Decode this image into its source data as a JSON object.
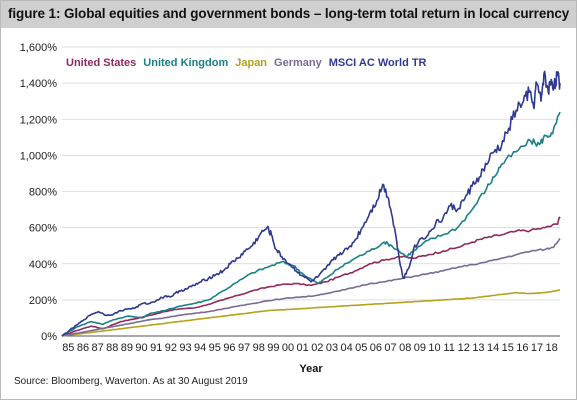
{
  "figure": {
    "title": "figure 1: Global equities and government bonds – long-term total return in local currency",
    "source": "Source: Bloomberg, Waverton. As at 30 August 2019"
  },
  "chart_data": {
    "type": "line",
    "title": "figure 1: Global equities and government bonds – long-term total return in local currency",
    "xlabel": "Year",
    "ylabel": "",
    "ylim": [
      0,
      1600
    ],
    "xlim": [
      1985,
      2019
    ],
    "y_ticks": [
      "0%",
      "200%",
      "400%",
      "600%",
      "800%",
      "1,000%",
      "1,200%",
      "1,400%",
      "1,600%"
    ],
    "y_tick_values": [
      0,
      200,
      400,
      600,
      800,
      1000,
      1200,
      1400,
      1600
    ],
    "x_ticks": [
      "85",
      "86",
      "87",
      "88",
      "89",
      "90",
      "91",
      "92",
      "93",
      "94",
      "95",
      "96",
      "97",
      "98",
      "99",
      "00",
      "01",
      "02",
      "03",
      "04",
      "05",
      "06",
      "07",
      "08",
      "09",
      "10",
      "11",
      "12",
      "13",
      "14",
      "15",
      "16",
      "17",
      "18"
    ],
    "grid": "horizontal",
    "legend": "top-left",
    "series": [
      {
        "name": "United States",
        "color": "#8e2a5e",
        "points": [
          [
            1985.0,
            0
          ],
          [
            1986.0,
            30
          ],
          [
            1987.0,
            55
          ],
          [
            1987.8,
            40
          ],
          [
            1989.0,
            80
          ],
          [
            1990.0,
            95
          ],
          [
            1991.0,
            115
          ],
          [
            1992.0,
            135
          ],
          [
            1993.0,
            150
          ],
          [
            1994.0,
            155
          ],
          [
            1995.0,
            175
          ],
          [
            1996.0,
            200
          ],
          [
            1997.0,
            225
          ],
          [
            1998.0,
            250
          ],
          [
            1999.0,
            270
          ],
          [
            2000.0,
            285
          ],
          [
            2001.0,
            290
          ],
          [
            2002.0,
            280
          ],
          [
            2003.0,
            300
          ],
          [
            2004.0,
            330
          ],
          [
            2005.0,
            360
          ],
          [
            2006.0,
            400
          ],
          [
            2007.0,
            420
          ],
          [
            2008.0,
            440
          ],
          [
            2009.0,
            430
          ],
          [
            2010.0,
            450
          ],
          [
            2011.0,
            470
          ],
          [
            2012.0,
            490
          ],
          [
            2013.0,
            520
          ],
          [
            2014.0,
            545
          ],
          [
            2015.0,
            560
          ],
          [
            2016.0,
            580
          ],
          [
            2017.0,
            585
          ],
          [
            2018.0,
            600
          ],
          [
            2018.8,
            620
          ],
          [
            2019.0,
            660
          ]
        ]
      },
      {
        "name": "United Kingdom",
        "color": "#1b8187",
        "points": [
          [
            1985.0,
            0
          ],
          [
            1986.0,
            50
          ],
          [
            1987.0,
            80
          ],
          [
            1987.8,
            65
          ],
          [
            1988.5,
            90
          ],
          [
            1989.5,
            110
          ],
          [
            1990.5,
            100
          ],
          [
            1991.0,
            125
          ],
          [
            1992.0,
            140
          ],
          [
            1993.0,
            165
          ],
          [
            1994.0,
            180
          ],
          [
            1995.0,
            200
          ],
          [
            1996.0,
            250
          ],
          [
            1997.0,
            300
          ],
          [
            1998.0,
            350
          ],
          [
            1999.0,
            380
          ],
          [
            2000.0,
            410
          ],
          [
            2000.8,
            390
          ],
          [
            2001.5,
            340
          ],
          [
            2002.5,
            290
          ],
          [
            2003.0,
            320
          ],
          [
            2004.0,
            380
          ],
          [
            2005.0,
            430
          ],
          [
            2006.0,
            470
          ],
          [
            2007.0,
            520
          ],
          [
            2007.5,
            500
          ],
          [
            2008.5,
            440
          ],
          [
            2009.0,
            470
          ],
          [
            2010.0,
            530
          ],
          [
            2011.0,
            560
          ],
          [
            2012.0,
            600
          ],
          [
            2013.0,
            700
          ],
          [
            2014.0,
            820
          ],
          [
            2014.5,
            880
          ],
          [
            2015.0,
            950
          ],
          [
            2016.0,
            1020
          ],
          [
            2017.0,
            1080
          ],
          [
            2017.6,
            1060
          ],
          [
            2018.0,
            1110
          ],
          [
            2018.5,
            1120
          ],
          [
            2019.0,
            1240
          ]
        ]
      },
      {
        "name": "Japan",
        "color": "#b5a21a",
        "points": [
          [
            1985.0,
            0
          ],
          [
            1986.0,
            10
          ],
          [
            1987.0,
            20
          ],
          [
            1988.0,
            30
          ],
          [
            1989.0,
            40
          ],
          [
            1990.0,
            50
          ],
          [
            1991.0,
            60
          ],
          [
            1992.0,
            70
          ],
          [
            1993.0,
            80
          ],
          [
            1994.0,
            90
          ],
          [
            1995.0,
            100
          ],
          [
            1996.0,
            110
          ],
          [
            1997.0,
            120
          ],
          [
            1998.0,
            130
          ],
          [
            1999.0,
            140
          ],
          [
            2000.0,
            145
          ],
          [
            2001.0,
            150
          ],
          [
            2002.0,
            155
          ],
          [
            2003.0,
            160
          ],
          [
            2004.0,
            165
          ],
          [
            2005.0,
            170
          ],
          [
            2006.0,
            175
          ],
          [
            2007.0,
            180
          ],
          [
            2008.0,
            185
          ],
          [
            2009.0,
            190
          ],
          [
            2010.0,
            195
          ],
          [
            2011.0,
            200
          ],
          [
            2012.0,
            205
          ],
          [
            2013.0,
            210
          ],
          [
            2014.0,
            220
          ],
          [
            2015.0,
            230
          ],
          [
            2016.0,
            240
          ],
          [
            2017.0,
            235
          ],
          [
            2018.0,
            240
          ],
          [
            2019.0,
            255
          ]
        ]
      },
      {
        "name": "Germany",
        "color": "#7a6a96",
        "points": [
          [
            1985.0,
            0
          ],
          [
            1986.0,
            15
          ],
          [
            1987.0,
            30
          ],
          [
            1988.0,
            45
          ],
          [
            1989.0,
            60
          ],
          [
            1990.0,
            75
          ],
          [
            1991.0,
            90
          ],
          [
            1992.0,
            100
          ],
          [
            1993.0,
            115
          ],
          [
            1994.0,
            125
          ],
          [
            1995.0,
            135
          ],
          [
            1996.0,
            150
          ],
          [
            1997.0,
            165
          ],
          [
            1998.0,
            180
          ],
          [
            1999.0,
            195
          ],
          [
            2000.0,
            205
          ],
          [
            2001.0,
            215
          ],
          [
            2002.0,
            220
          ],
          [
            2003.0,
            235
          ],
          [
            2004.0,
            250
          ],
          [
            2005.0,
            270
          ],
          [
            2006.0,
            290
          ],
          [
            2007.0,
            300
          ],
          [
            2008.0,
            315
          ],
          [
            2009.0,
            330
          ],
          [
            2010.0,
            345
          ],
          [
            2011.0,
            360
          ],
          [
            2012.0,
            380
          ],
          [
            2013.0,
            395
          ],
          [
            2014.0,
            410
          ],
          [
            2015.0,
            430
          ],
          [
            2016.0,
            450
          ],
          [
            2017.0,
            470
          ],
          [
            2018.0,
            480
          ],
          [
            2018.5,
            490
          ],
          [
            2019.0,
            540
          ]
        ]
      },
      {
        "name": "MSCI AC World TR",
        "color": "#2f3a8f",
        "points": [
          [
            1985.0,
            0
          ],
          [
            1985.5,
            30
          ],
          [
            1986.0,
            60
          ],
          [
            1986.5,
            90
          ],
          [
            1987.0,
            120
          ],
          [
            1987.5,
            135
          ],
          [
            1988.0,
            115
          ],
          [
            1988.5,
            120
          ],
          [
            1989.0,
            140
          ],
          [
            1989.5,
            150
          ],
          [
            1990.0,
            155
          ],
          [
            1990.5,
            180
          ],
          [
            1991.0,
            180
          ],
          [
            1991.5,
            200
          ],
          [
            1992.0,
            220
          ],
          [
            1992.5,
            220
          ],
          [
            1993.0,
            250
          ],
          [
            1993.5,
            260
          ],
          [
            1994.0,
            280
          ],
          [
            1994.5,
            300
          ],
          [
            1995.0,
            320
          ],
          [
            1995.5,
            340
          ],
          [
            1996.0,
            360
          ],
          [
            1996.5,
            400
          ],
          [
            1997.0,
            430
          ],
          [
            1997.5,
            470
          ],
          [
            1998.0,
            500
          ],
          [
            1998.5,
            560
          ],
          [
            1999.0,
            600
          ],
          [
            1999.3,
            560
          ],
          [
            1999.6,
            480
          ],
          [
            2000.0,
            440
          ],
          [
            2000.5,
            400
          ],
          [
            2001.0,
            360
          ],
          [
            2001.5,
            330
          ],
          [
            2002.0,
            300
          ],
          [
            2002.5,
            330
          ],
          [
            2003.0,
            370
          ],
          [
            2003.5,
            420
          ],
          [
            2004.0,
            460
          ],
          [
            2004.5,
            480
          ],
          [
            2005.0,
            530
          ],
          [
            2005.5,
            600
          ],
          [
            2006.0,
            680
          ],
          [
            2006.5,
            750
          ],
          [
            2006.9,
            840
          ],
          [
            2007.3,
            760
          ],
          [
            2007.7,
            600
          ],
          [
            2008.0,
            440
          ],
          [
            2008.3,
            320
          ],
          [
            2008.7,
            380
          ],
          [
            2009.0,
            480
          ],
          [
            2009.5,
            540
          ],
          [
            2010.0,
            560
          ],
          [
            2010.5,
            620
          ],
          [
            2011.0,
            650
          ],
          [
            2011.5,
            720
          ],
          [
            2012.0,
            700
          ],
          [
            2012.5,
            760
          ],
          [
            2013.0,
            830
          ],
          [
            2013.5,
            880
          ],
          [
            2014.0,
            950
          ],
          [
            2014.5,
            1020
          ],
          [
            2015.0,
            1050
          ],
          [
            2015.5,
            1150
          ],
          [
            2016.0,
            1250
          ],
          [
            2016.5,
            1300
          ],
          [
            2016.9,
            1350
          ],
          [
            2017.2,
            1270
          ],
          [
            2017.4,
            1400
          ],
          [
            2017.7,
            1300
          ],
          [
            2017.9,
            1450
          ],
          [
            2018.2,
            1350
          ],
          [
            2018.4,
            1420
          ],
          [
            2018.6,
            1380
          ],
          [
            2018.8,
            1440
          ],
          [
            2019.0,
            1400
          ]
        ]
      }
    ]
  }
}
